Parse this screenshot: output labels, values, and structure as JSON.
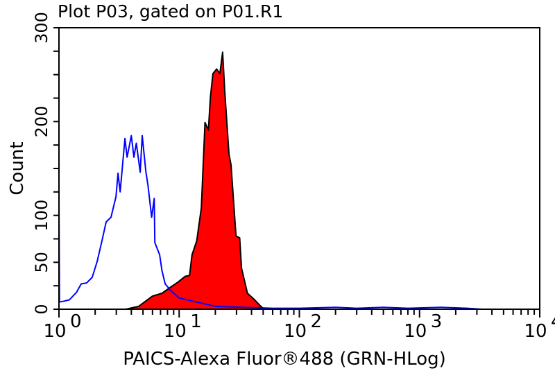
{
  "chart_data": {
    "type": "line",
    "title": "Plot P03, gated on P01.R1",
    "xlabel": "PAICS-Alexa Fluor®488 (GRN-HLog)",
    "ylabel": "Count",
    "x_scale": "log",
    "xlim": [
      1,
      10000
    ],
    "ylim": [
      0,
      300
    ],
    "x_ticks": [
      {
        "base": "10",
        "exp": "0"
      },
      {
        "base": "10",
        "exp": "1"
      },
      {
        "base": "10",
        "exp": "2"
      },
      {
        "base": "10",
        "exp": "3"
      },
      {
        "base": "10",
        "exp": "4"
      }
    ],
    "y_ticks": [
      "0",
      "50",
      "100",
      "200",
      "300"
    ],
    "y_tick_values": [
      0,
      50,
      100,
      200,
      300
    ],
    "grid": false,
    "series": [
      {
        "color": "#0000ff",
        "fill": "none",
        "x": [
          1.0,
          1.0,
          1.01,
          1.05,
          1.22,
          1.4,
          1.53,
          1.7,
          1.89,
          2.08,
          2.28,
          2.47,
          2.71,
          2.98,
          3.1,
          3.23,
          3.54,
          3.69,
          4.0,
          4.2,
          4.4,
          4.74,
          4.93,
          5.28,
          5.5,
          5.9,
          6.2,
          6.28,
          6.88,
          7.2,
          7.65,
          8.5,
          10,
          20,
          60,
          100,
          200,
          300,
          500,
          800,
          1500,
          2500,
          3300
        ],
        "y": [
          0,
          114,
          8,
          8,
          10,
          18,
          27,
          28,
          34,
          51,
          73,
          93,
          98,
          120,
          145,
          125,
          182,
          162,
          185,
          162,
          177,
          146,
          185,
          147,
          132,
          98,
          118,
          71,
          58,
          41,
          27,
          20,
          12,
          3,
          1,
          1,
          2,
          1,
          2,
          1,
          2,
          1,
          0
        ]
      },
      {
        "color": "#000000",
        "fill": "#ff0000",
        "x": [
          3.6,
          4.6,
          6.0,
          7.2,
          8.6,
          9.8,
          11.2,
          12.2,
          12.8,
          14,
          15.3,
          16.4,
          17.5,
          18.2,
          19.1,
          20.5,
          21.8,
          23,
          24,
          26,
          27,
          29.7,
          31.9,
          33,
          37,
          42.5,
          47,
          51
        ],
        "y": [
          0,
          3,
          14,
          17,
          24,
          29,
          35,
          36,
          58,
          73,
          108,
          199,
          191,
          226,
          251,
          256,
          251,
          274,
          231,
          165,
          154,
          78,
          76,
          44,
          17,
          10,
          4,
          0
        ]
      }
    ]
  }
}
